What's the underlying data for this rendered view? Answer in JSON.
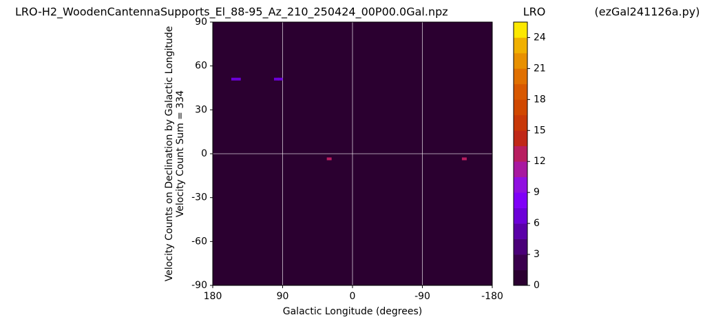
{
  "chart_data": {
    "type": "heatmap",
    "title": "LRO-H2_WoodenCantennaSupports_El_88-95_Az_210_250424_00P00.0Gal.npz",
    "title_center": "LRO",
    "title_right": "(ezGal241126a.py)",
    "x_label": "Galactic Longitude (degrees)",
    "y_label": [
      "Velocity Counts on Declination by Galactic Longitude",
      "Velocity Count Sum = 334"
    ],
    "xlim": [
      180,
      -180
    ],
    "ylim": [
      -90,
      90
    ],
    "xticks": [
      180,
      90,
      0,
      -90,
      -180
    ],
    "yticks": [
      -90,
      -60,
      -30,
      0,
      30,
      60,
      90
    ],
    "x_grid": true,
    "hlines": [
      0
    ],
    "x": [
      153,
      147,
      98,
      93,
      30,
      -144
    ],
    "y": [
      51,
      51,
      51,
      51,
      -3.5,
      -3.5
    ],
    "values": [
      6,
      6,
      6,
      6,
      12,
      12
    ],
    "colorbar": {
      "lim": [
        0,
        25.5
      ],
      "ticks": [
        0,
        3,
        6,
        9,
        12,
        15,
        18,
        21,
        24
      ],
      "colors": [
        "#2b0030",
        "#3a004d",
        "#4a0078",
        "#5a00a8",
        "#6c00d8",
        "#8000f8",
        "#9010e0",
        "#a818a0",
        "#b81e60",
        "#c02818",
        "#c83808",
        "#d04800",
        "#d85800",
        "#e07000",
        "#e89000",
        "#f0b000",
        "#fce800"
      ]
    }
  }
}
